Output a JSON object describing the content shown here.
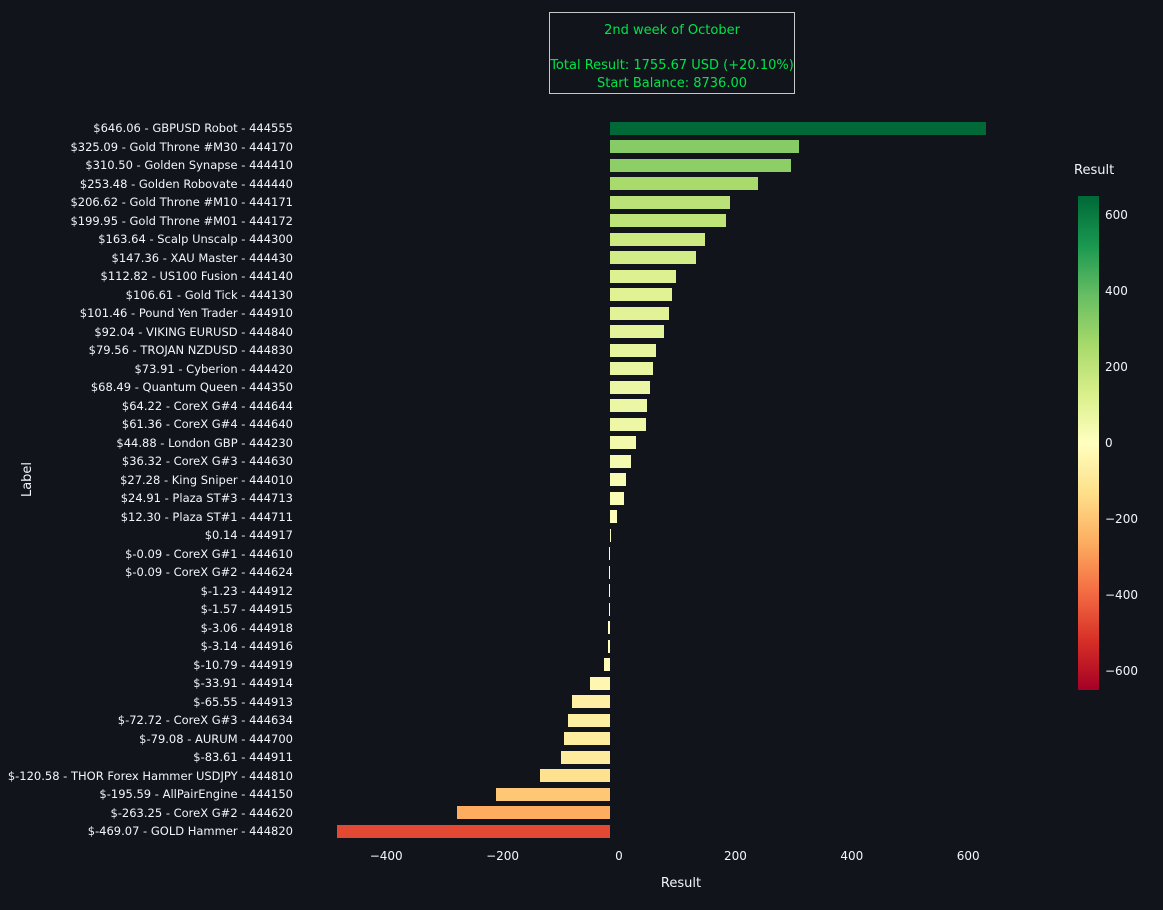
{
  "summary_box": {
    "week_label": "2nd week of October",
    "total_result": "Total Result: 1755.67 USD (+20.10%)",
    "start_balance": "Start Balance: 8736.00"
  },
  "colors": {
    "background": "#12141c",
    "text": "#f2f5fa",
    "summary_text": "#00e44a",
    "summary_border": "#c8c8c8"
  },
  "chart_data": {
    "type": "bar",
    "orientation": "horizontal",
    "title": "",
    "xlabel": "Result",
    "ylabel": "Label",
    "grid": false,
    "legend": false,
    "xlim": [
      -530,
      730
    ],
    "x_ticks": [
      "−400",
      "−200",
      "0",
      "200",
      "400",
      "600"
    ],
    "x_tick_values": [
      -400,
      -200,
      0,
      200,
      400,
      600
    ],
    "colorbar": {
      "title": "Result",
      "position": "right",
      "ticks": [
        "600",
        "400",
        "200",
        "0",
        "−200",
        "−400",
        "−600"
      ],
      "tick_values": [
        600,
        400,
        200,
        0,
        -200,
        -400,
        -600
      ],
      "cmin": -650,
      "cmax": 650,
      "colormap": "RdYlGn"
    },
    "colormap_stops": [
      "#a50026",
      "#d73027",
      "#f46d43",
      "#fdae61",
      "#fee08b",
      "#ffffbf",
      "#d9ef8b",
      "#a6d96a",
      "#66bd63",
      "#1a9850",
      "#006837"
    ],
    "categories": [
      "$646.06 - GBPUSD Robot - 444555",
      "$325.09 - Gold Throne #M30 - 444170",
      "$310.50 - Golden Synapse - 444410",
      "$253.48 - Golden Robovate - 444440",
      "$206.62 - Gold Throne #M10 - 444171",
      "$199.95 - Gold Throne #M01 - 444172",
      "$163.64 - Scalp Unscalp - 444300",
      "$147.36 - XAU Master - 444430",
      "$112.82 - US100 Fusion - 444140",
      "$106.61 - Gold Tick - 444130",
      "$101.46 - Pound Yen Trader - 444910",
      "$92.04 - VIKING EURUSD - 444840",
      "$79.56 - TROJAN NZDUSD - 444830",
      "$73.91 - Cyberion - 444420",
      "$68.49 - Quantum Queen - 444350",
      "$64.22 - CoreX G#4 - 444644",
      "$61.36 - CoreX G#4 - 444640",
      "$44.88 - London GBP - 444230",
      "$36.32 - CoreX G#3 - 444630",
      "$27.28 - King Sniper - 444010",
      "$24.91 - Plaza ST#3 - 444713",
      "$12.30 - Plaza ST#1 - 444711",
      "$0.14 - 444917",
      "$-0.09 - CoreX G#1 - 444610",
      "$-0.09 - CoreX G#2 - 444624",
      "$-1.23 - 444912",
      "$-1.57 - 444915",
      "$-3.06 - 444918",
      "$-3.14 - 444916",
      "$-10.79 - 444919",
      "$-33.91 - 444914",
      "$-65.55 - 444913",
      "$-72.72 - CoreX G#3 - 444634",
      "$-79.08 - AURUM - 444700",
      "$-83.61 - 444911",
      "$-120.58 - THOR Forex Hammer USDJPY - 444810",
      "$-195.59 - AllPairEngine - 444150",
      "$-263.25 - CoreX G#2 - 444620",
      "$-469.07 - GOLD Hammer - 444820"
    ],
    "values": [
      646.06,
      325.09,
      310.5,
      253.48,
      206.62,
      199.95,
      163.64,
      147.36,
      112.82,
      106.61,
      101.46,
      92.04,
      79.56,
      73.91,
      68.49,
      64.22,
      61.36,
      44.88,
      36.32,
      27.28,
      24.91,
      12.3,
      0.14,
      -0.09,
      -0.09,
      -1.23,
      -1.57,
      -3.06,
      -3.14,
      -10.79,
      -33.91,
      -65.55,
      -72.72,
      -79.08,
      -83.61,
      -120.58,
      -195.59,
      -263.25,
      -469.07
    ]
  }
}
